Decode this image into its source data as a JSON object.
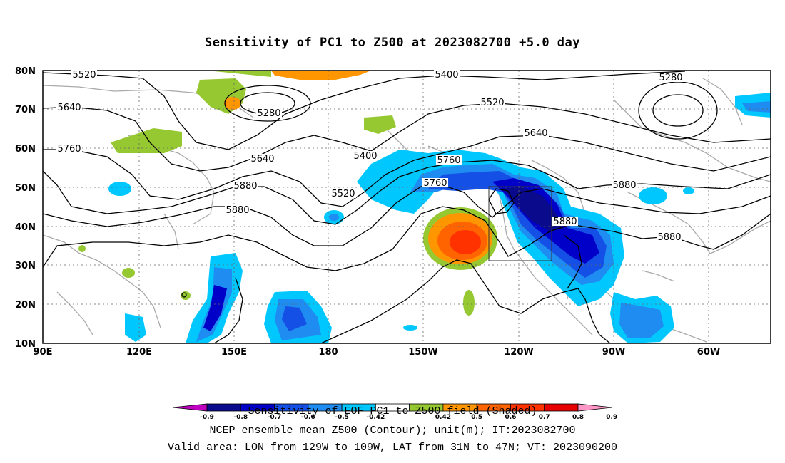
{
  "title": "Sensitivity of PC1 to Z500 at 2023082700 +5.0 day",
  "axes": {
    "lon_labels": [
      "90E",
      "120E",
      "150E",
      "180",
      "150W",
      "120W",
      "90W",
      "60W"
    ],
    "lat_labels": [
      "80N",
      "70N",
      "60N",
      "50N",
      "40N",
      "30N",
      "20N",
      "10N"
    ]
  },
  "contour_labels": [
    "5520",
    "5400",
    "5280",
    "5640",
    "5520",
    "5760",
    "5280",
    "5400",
    "5640",
    "5640",
    "5760",
    "5520",
    "5880",
    "5760",
    "5880",
    "5880",
    "5880",
    "5880"
  ],
  "colorbar": {
    "tick_labels": [
      "-0.9",
      "-0.8",
      "-0.7",
      "-0.6",
      "-0.5",
      "-0.42",
      "0.42",
      "0.5",
      "0.6",
      "0.7",
      "0.8",
      "0.9"
    ],
    "colors": [
      "#c000c0",
      "#0a0a8c",
      "#0000c8",
      "#1450e6",
      "#1e8cf0",
      "#00c8ff",
      "#ffffff",
      "#96c832",
      "#ff9600",
      "#ff6400",
      "#ff3200",
      "#e60000",
      "#ff96c8"
    ]
  },
  "caption_lines": [
    "Sensitivity of EOF PC1 to Z500 field (Shaded)",
    "NCEP ensemble mean Z500 (Contour); unit(m); IT:2023082700",
    "Valid area: LON from 129W to 109W, LAT from 31N to 47N; VT: 2023090200"
  ]
}
